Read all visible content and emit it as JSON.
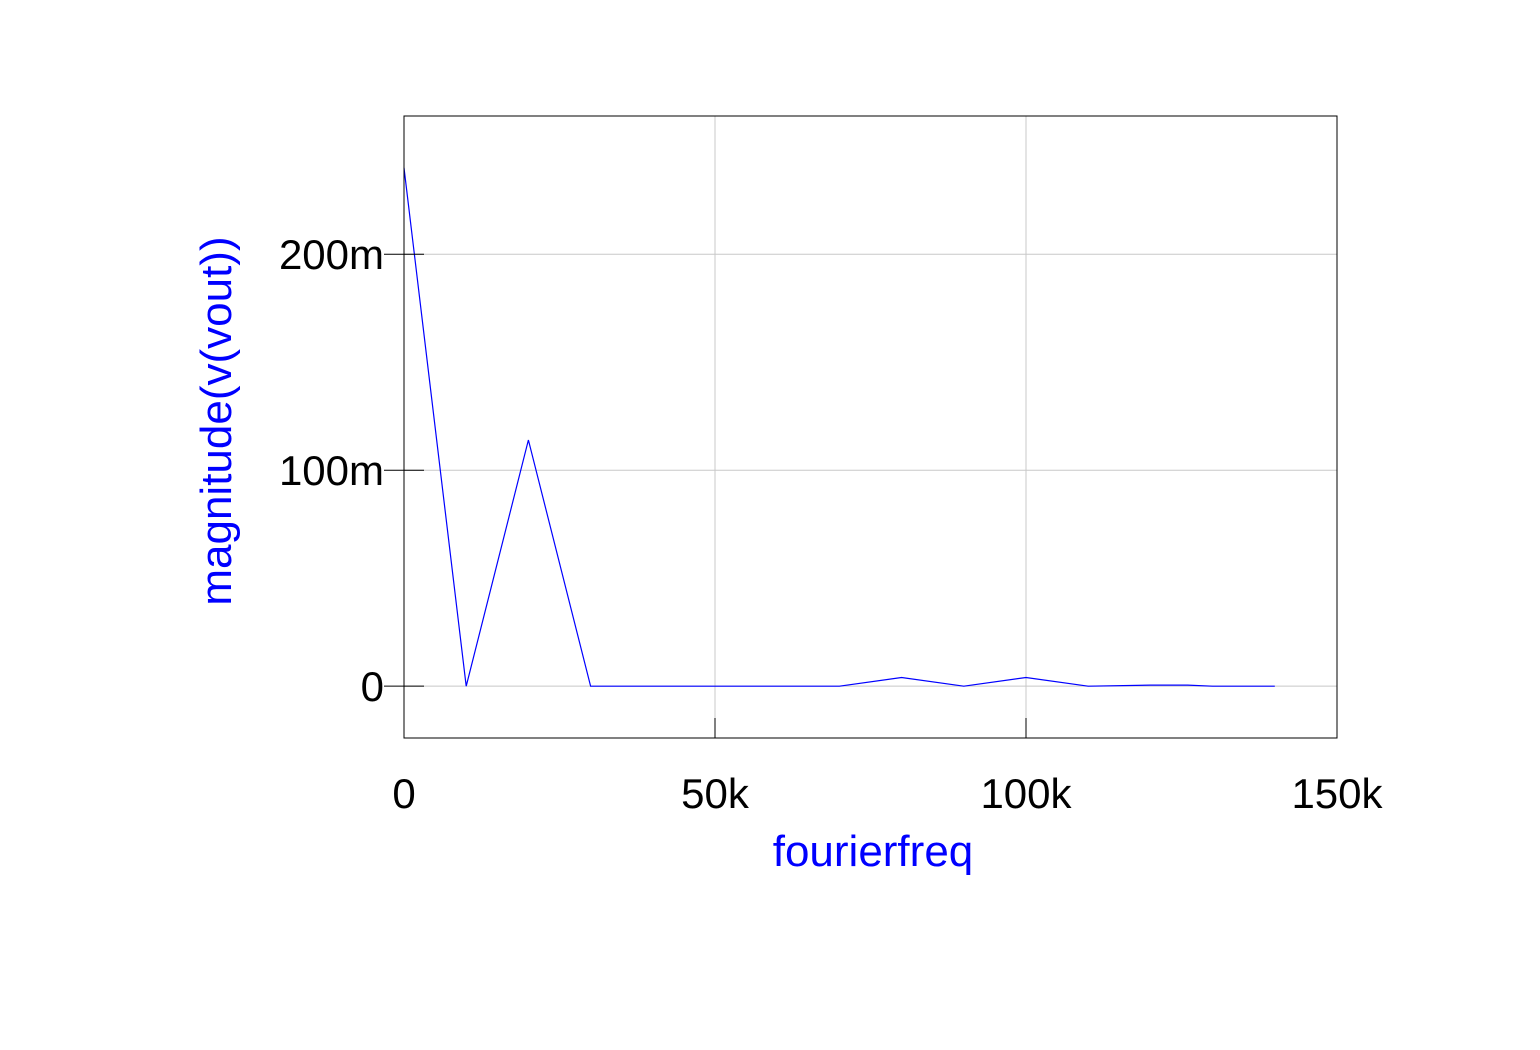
{
  "colors": {
    "series": "#0000ff",
    "axis_label": "#0000ff",
    "tick_label": "#000000",
    "grid": "#c8c8c8",
    "frame": "#000000",
    "background": "#ffffff"
  },
  "chart_data": {
    "type": "line",
    "title": "",
    "xlabel": "fourierfreq",
    "ylabel": "magnitude(v(vout))",
    "xlim": [
      0,
      150000
    ],
    "ylim": [
      -0.024,
      0.264
    ],
    "xticks": [
      0,
      50000,
      100000,
      150000
    ],
    "xtick_labels": [
      "0",
      "50k",
      "100k",
      "150k"
    ],
    "yticks": [
      0,
      0.1,
      0.2
    ],
    "ytick_labels": [
      "0",
      "100m",
      "200m"
    ],
    "grid": true,
    "series": [
      {
        "color": "#0000ff",
        "x": [
          0,
          10000,
          20000,
          30000,
          40000,
          50000,
          60000,
          70000,
          80000,
          90000,
          100000,
          110000,
          120000,
          126000,
          130000,
          140000
        ],
        "y": [
          0.24,
          0.0,
          0.114,
          0.0,
          0.0,
          0.0,
          0.0,
          0.0,
          0.004,
          0.0,
          0.004,
          0.0,
          0.0005,
          0.0005,
          0.0,
          0.0
        ]
      }
    ]
  }
}
